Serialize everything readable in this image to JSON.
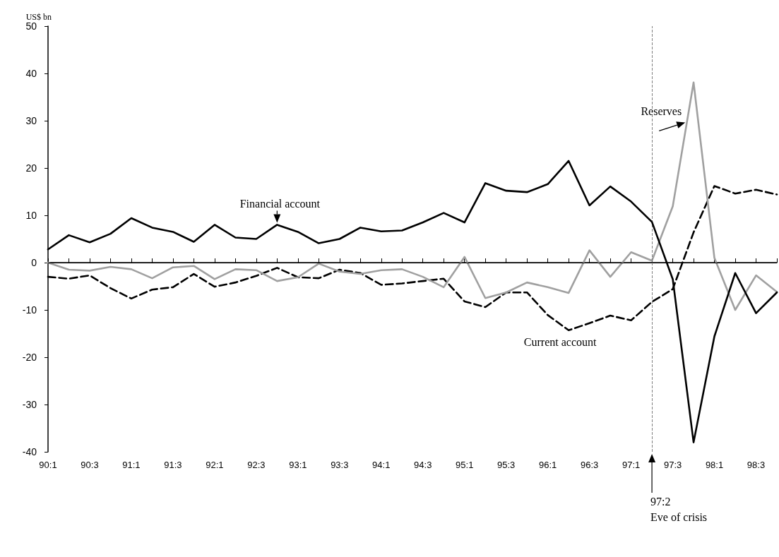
{
  "chart_data": {
    "type": "line",
    "ylabel": "US$ bn",
    "categories": [
      "90:1",
      null,
      "90:3",
      null,
      "91:1",
      null,
      "91:3",
      null,
      "92:1",
      null,
      "92:3",
      null,
      "93:1",
      null,
      "93:3",
      null,
      "94:1",
      null,
      "94:3",
      null,
      "95:1",
      null,
      "95:3",
      null,
      "96:1",
      null,
      "96:3",
      null,
      "97:1",
      null,
      "97:3",
      null,
      "98:1",
      null,
      "98:3",
      null
    ],
    "series": [
      {
        "name": "Financial account",
        "color": "#000000",
        "line_style": "solid",
        "values": [
          2.8,
          5.8,
          4.3,
          6.1,
          9.4,
          7.4,
          6.5,
          4.4,
          8.0,
          5.3,
          5.0,
          8.0,
          6.5,
          4.1,
          5.0,
          7.4,
          6.6,
          6.8,
          8.5,
          10.5,
          8.5,
          16.8,
          15.2,
          14.9,
          16.6,
          21.5,
          12.1,
          16.1,
          12.9,
          8.6,
          -3.5,
          -38,
          -15.6,
          -2.2,
          -10.7,
          -6.3
        ]
      },
      {
        "name": "Reserves",
        "color": "#a0a0a0",
        "line_style": "solid",
        "values": [
          0,
          -1.5,
          -1.7,
          -0.9,
          -1.4,
          -3.3,
          -1.0,
          -0.7,
          -3.5,
          -1.4,
          -1.6,
          -3.9,
          -3.1,
          -0.2,
          -1.9,
          -2.4,
          -1.6,
          -1.4,
          -3.0,
          -5.2,
          1.2,
          -7.5,
          -6.3,
          -4.2,
          -5.2,
          -6.4,
          2.6,
          -3.0,
          2.2,
          0.4,
          11.9,
          38.1,
          1.0,
          -10.0,
          -2.7,
          -6.2
        ]
      },
      {
        "name": "Current account",
        "color": "#000000",
        "line_style": "dashed",
        "values": [
          -3.0,
          -3.4,
          -2.7,
          -5.4,
          -7.6,
          -5.7,
          -5.2,
          -2.4,
          -5.1,
          -4.2,
          -2.8,
          -1.1,
          -3.1,
          -3.3,
          -1.5,
          -2.2,
          -4.7,
          -4.4,
          -3.9,
          -3.4,
          -8.2,
          -9.4,
          -6.3,
          -6.3,
          -11.1,
          -14.3,
          -12.8,
          -11.2,
          -12.2,
          -8.3,
          -5.6,
          6.4,
          16.2,
          14.6,
          15.4,
          14.4
        ]
      }
    ],
    "ylim": [
      -40,
      50
    ],
    "yticks": [
      -40,
      -30,
      -20,
      -10,
      0,
      10,
      20,
      30,
      40,
      50
    ],
    "grid": false,
    "legend": false,
    "marker": "none",
    "annotations": [
      "97:2\nEve of crisis"
    ],
    "ref_lines": [
      {
        "axis": "y",
        "value": 0,
        "label": null,
        "color": "#000000",
        "line_style": "solid"
      }
    ]
  }
}
